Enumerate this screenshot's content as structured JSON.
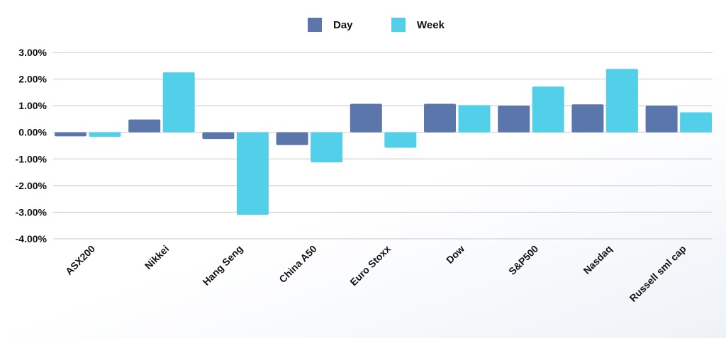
{
  "chart_data": {
    "type": "bar",
    "categories": [
      "ASX200",
      "Nikkei",
      "Hang Seng",
      "China A50",
      "Euro Stoxx",
      "Dow",
      "S&P500",
      "Nasdaq",
      "Russell sml cap"
    ],
    "series": [
      {
        "name": "Day",
        "color": "#5b76ab",
        "values": [
          -0.15,
          0.48,
          -0.25,
          -0.48,
          1.07,
          1.07,
          1.0,
          1.05,
          1.0
        ]
      },
      {
        "name": "Week",
        "color": "#52d0ea",
        "values": [
          -0.17,
          2.25,
          -3.1,
          -1.13,
          -0.58,
          1.02,
          1.72,
          2.38,
          0.75
        ]
      }
    ],
    "ylim": [
      -4,
      3
    ],
    "yticks": [
      3,
      2,
      1,
      0,
      -1,
      -2,
      -3,
      -4
    ],
    "ytick_labels": [
      "3.00%",
      "2.00%",
      "1.00%",
      "0.00%",
      "-1.00%",
      "-2.00%",
      "-3.00%",
      "-4.00%"
    ],
    "grid": true,
    "legend_position": "top-center",
    "grid_color": "#c8c8c8"
  }
}
